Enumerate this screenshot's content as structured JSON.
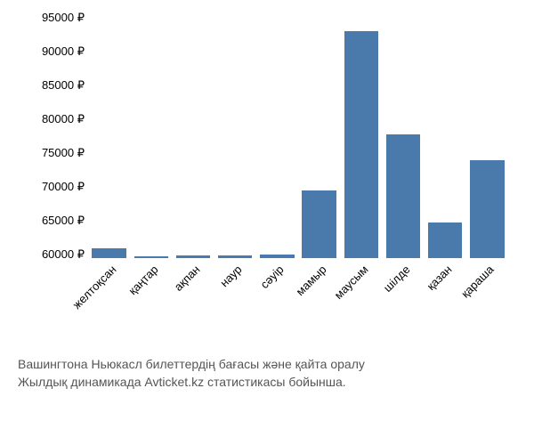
{
  "chart": {
    "type": "bar",
    "categories": [
      "желтоқсан",
      "қаңтар",
      "ақпан",
      "наур",
      "сәуір",
      "мамыр",
      "маусым",
      "шілде",
      "қазан",
      "қараша"
    ],
    "values": [
      61000,
      59800,
      59900,
      59900,
      60000,
      69500,
      93000,
      77800,
      64800,
      74000
    ],
    "bar_color": "#4a7aab",
    "background_color": "#ffffff",
    "y_axis": {
      "min": 59500,
      "max": 95000,
      "tick_step": 5000,
      "tick_start": 60000,
      "currency": "₽",
      "label_fontsize": 13,
      "label_color": "#000000"
    },
    "x_axis": {
      "label_fontsize": 13,
      "label_color": "#000000",
      "rotation": -45
    },
    "bar_width_ratio": 0.85
  },
  "caption": {
    "line1": "Вашингтона Ньюкасл билеттердің бағасы және қайта оралу",
    "line2": "Жылдық динамикада Avticket.kz статистикасы бойынша.",
    "fontsize": 14,
    "color": "#555555"
  }
}
